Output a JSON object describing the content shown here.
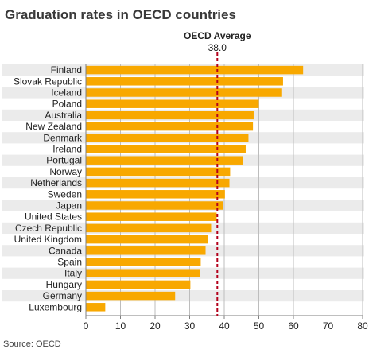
{
  "chart_data": {
    "type": "bar",
    "orientation": "horizontal",
    "title": "Graduation rates in OECD countries",
    "xlabel": "",
    "ylabel": "",
    "categories": [
      "Finland",
      "Slovak Republic",
      "Iceland",
      "Poland",
      "Australia",
      "New Zealand",
      "Denmark",
      "Ireland",
      "Portugal",
      "Norway",
      "Netherlands",
      "Sweden",
      "Japan",
      "United States",
      "Czech Republic",
      "United Kingdom",
      "Canada",
      "Spain",
      "Italy",
      "Hungary",
      "Germany",
      "Luxembourg"
    ],
    "values": [
      62.8,
      57.0,
      56.5,
      50.0,
      48.5,
      48.3,
      47.0,
      46.2,
      45.3,
      41.7,
      41.5,
      40.2,
      39.6,
      37.8,
      36.2,
      35.3,
      34.6,
      33.2,
      33.0,
      30.2,
      25.8,
      5.6
    ],
    "xlim": [
      0,
      80
    ],
    "xticks": [
      0,
      10,
      20,
      30,
      40,
      50,
      60,
      70,
      80
    ],
    "grid": true,
    "reference_line": {
      "label": "OECD Average",
      "value": 38.0,
      "value_label": "38.0"
    },
    "source": "Source: OECD",
    "colors": {
      "bar": "#f8a800",
      "band": "#ebebeb",
      "reference": "#b3001b",
      "grid": "#bdbdbd",
      "axis": "#7f7f7f"
    }
  }
}
